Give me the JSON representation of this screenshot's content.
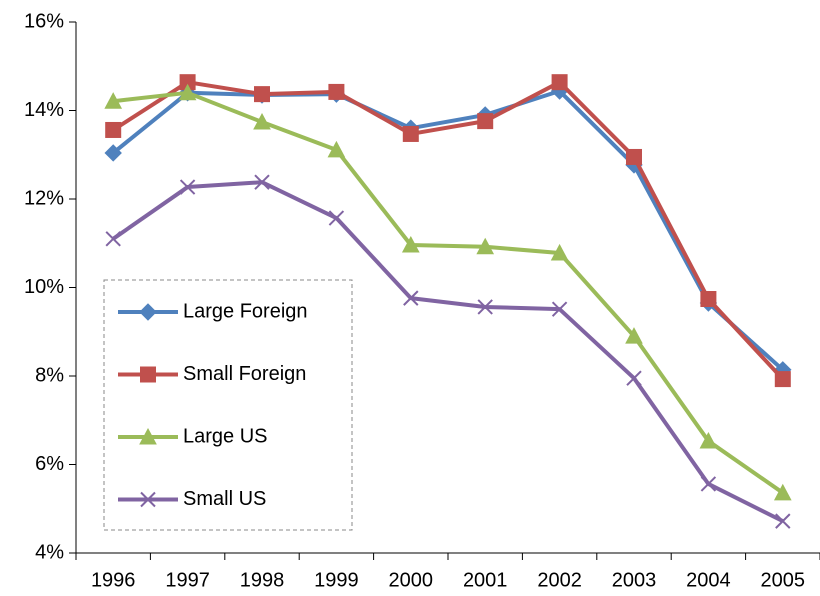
{
  "chart_data": {
    "type": "line",
    "categories": [
      "1996",
      "1997",
      "1998",
      "1999",
      "2000",
      "2001",
      "2002",
      "2003",
      "2004",
      "2005"
    ],
    "series": [
      {
        "name": "Large Foreign",
        "color": "#4f81bd",
        "marker": "diamond",
        "values": [
          13.04,
          14.4,
          14.35,
          14.37,
          13.6,
          13.9,
          14.44,
          12.77,
          9.65,
          8.14
        ]
      },
      {
        "name": "Small Foreign",
        "color": "#c0504d",
        "marker": "square",
        "values": [
          13.56,
          14.64,
          14.37,
          14.42,
          13.47,
          13.76,
          14.64,
          12.95,
          9.74,
          7.93
        ]
      },
      {
        "name": "Large US",
        "color": "#9bbb59",
        "marker": "triangle",
        "values": [
          14.21,
          14.4,
          13.74,
          13.11,
          10.96,
          10.92,
          10.78,
          8.9,
          6.53,
          5.36
        ]
      },
      {
        "name": "Small US",
        "color": "#8064a2",
        "marker": "x",
        "values": [
          11.1,
          12.27,
          12.38,
          11.57,
          9.76,
          9.56,
          9.51,
          7.95,
          5.56,
          4.72
        ]
      }
    ],
    "ylim": [
      4,
      16
    ],
    "yticks": [
      {
        "value": 4,
        "label": "4%"
      },
      {
        "value": 6,
        "label": "6%"
      },
      {
        "value": 8,
        "label": "8%"
      },
      {
        "value": 10,
        "label": "10%"
      },
      {
        "value": 12,
        "label": "12%"
      },
      {
        "value": 14,
        "label": "14%"
      },
      {
        "value": 16,
        "label": "16%"
      }
    ],
    "grid": false,
    "legend": "lower left"
  }
}
